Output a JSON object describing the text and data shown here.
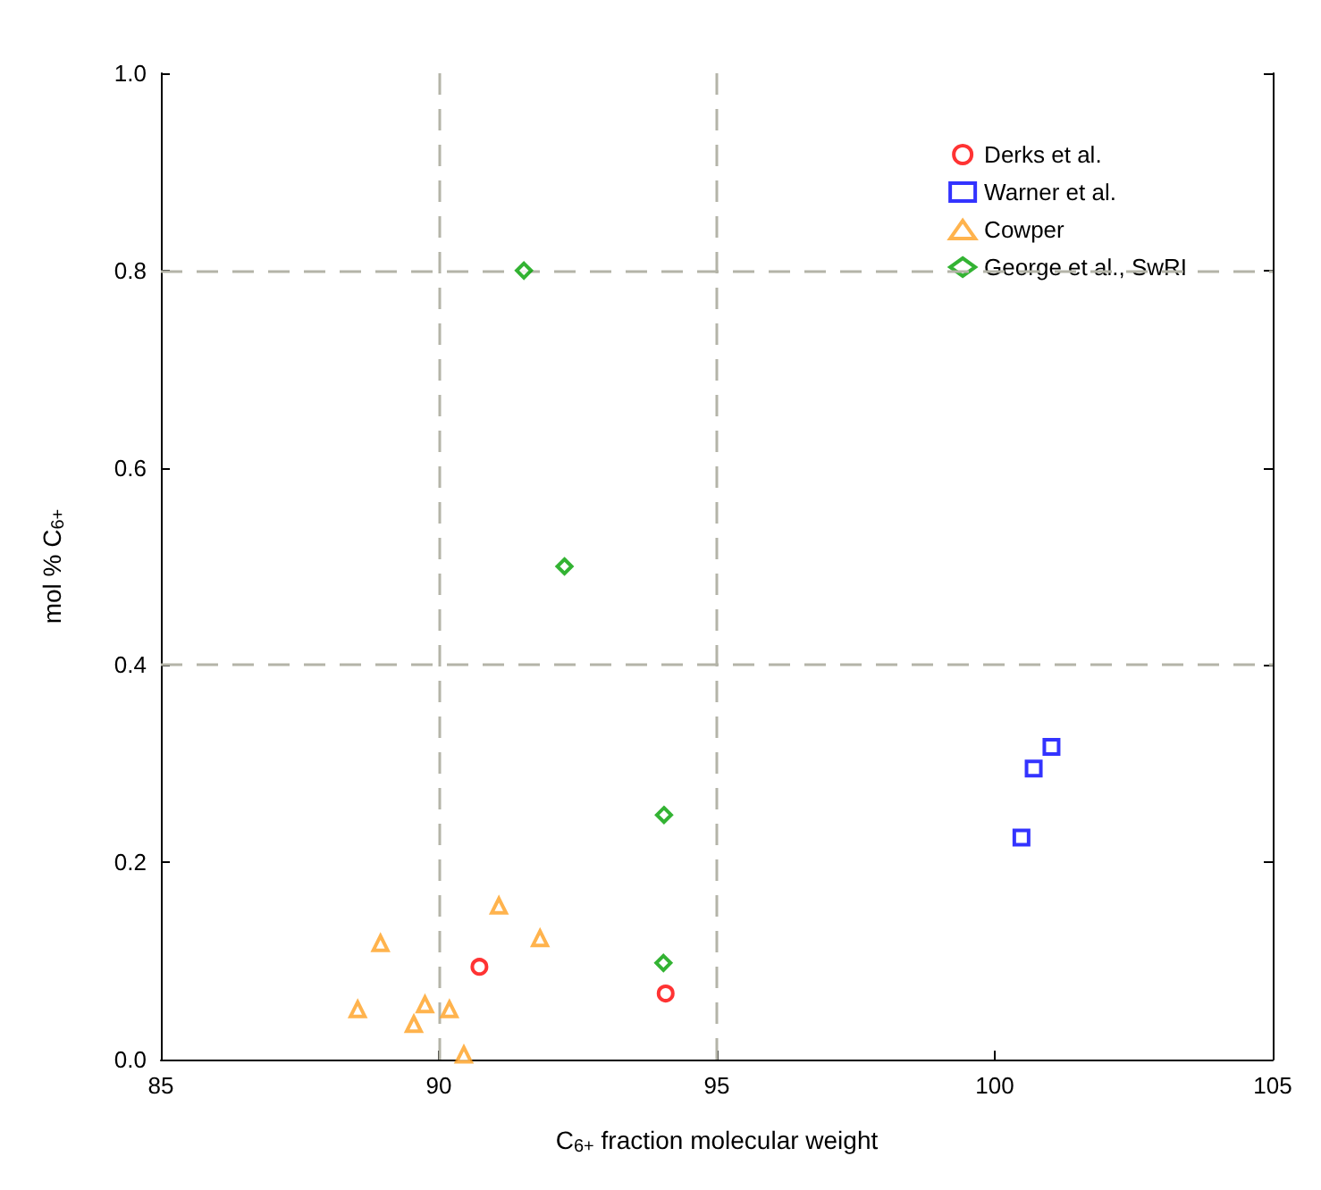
{
  "chart_data": {
    "type": "scatter",
    "xlabel": "C$_{6+}$ fraction molecular weight",
    "ylabel": "mol % C$_{6+}$",
    "xlim": [
      85,
      105
    ],
    "xticks": [
      85,
      90,
      95,
      100,
      105
    ],
    "ylim": [
      0,
      1.0
    ],
    "yticks": [
      {
        "value": 0,
        "label": "0.0"
      },
      0.2,
      0.4,
      0.6,
      0.8,
      {
        "value": 1.0,
        "label": "1.0"
      }
    ],
    "grid": false,
    "legend": "top right",
    "ref_lines": [
      {
        "axis": "x",
        "value": 90,
        "color": "#b4b4a8",
        "line_style": "dashed"
      },
      {
        "axis": "x",
        "value": 95,
        "color": "#b4b4a8",
        "line_style": "dashed"
      },
      {
        "axis": "y",
        "value": 0.4,
        "color": "#b4b4a8",
        "line_style": "dashed"
      },
      {
        "axis": "y",
        "value": 0.8,
        "color": "#b4b4a8",
        "line_style": "dashed"
      }
    ],
    "series": [
      {
        "name": "Derks et al.",
        "color": "#ff0000",
        "marker": "circle",
        "x": [
          90.73,
          94.08
        ],
        "values": [
          0.094,
          0.067
        ]
      },
      {
        "name": "Warner et al.",
        "color": "#0000ff",
        "marker": "square",
        "x": [
          101.02,
          100.7,
          100.48
        ],
        "values": [
          0.317,
          0.295,
          0.225
        ]
      },
      {
        "name": "Cowper",
        "color": "#ffa020",
        "marker": "triangle",
        "x": [
          88.95,
          91.08,
          91.82,
          88.54,
          89.75,
          90.19,
          89.55,
          90.45
        ],
        "values": [
          0.118,
          0.156,
          0.123,
          0.051,
          0.056,
          0.051,
          0.036,
          0.005
        ]
      },
      {
        "name": "George et al., SwRI",
        "color": "#00a000",
        "marker": "diamond",
        "x": [
          91.53,
          92.26,
          94.05,
          94.04
        ],
        "values": [
          0.8,
          0.5,
          0.248,
          0.098
        ]
      }
    ]
  }
}
